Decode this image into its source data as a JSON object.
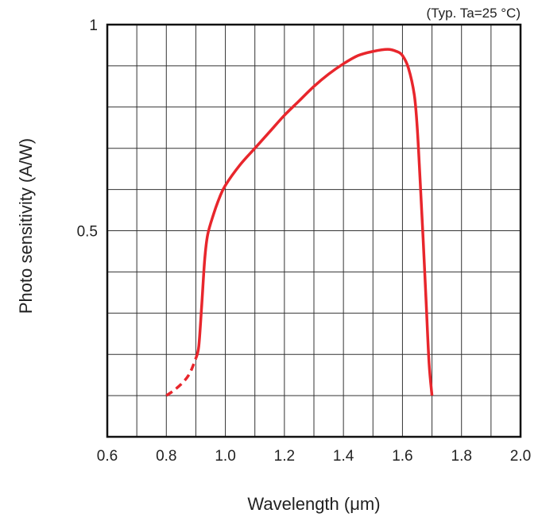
{
  "chart_data": {
    "type": "line",
    "title": "",
    "annotation": "(Typ. Ta=25 °C)",
    "xlabel": "Wavelength (μm)",
    "ylabel": "Photo sensitivity (A/W)",
    "xlim": [
      0.6,
      2.0
    ],
    "ylim": [
      0,
      1
    ],
    "x_ticks": [
      "0.6",
      "0.8",
      "1.0",
      "1.2",
      "1.4",
      "1.6",
      "1.8",
      "2.0"
    ],
    "x_tick_values": [
      0.6,
      0.8,
      1.0,
      1.2,
      1.4,
      1.6,
      1.8,
      2.0
    ],
    "y_ticks": [
      "0.5",
      "1"
    ],
    "y_tick_values": [
      0.5,
      1.0
    ],
    "grid": true,
    "x_grid_step": 0.1,
    "y_grid_step": 0.1,
    "line_color": "#e8262c",
    "series": [
      {
        "style": "dashed",
        "x": [
          0.8,
          0.83,
          0.86,
          0.88,
          0.9
        ],
        "y": [
          0.1,
          0.115,
          0.135,
          0.155,
          0.19
        ]
      },
      {
        "style": "solid",
        "x": [
          0.9,
          0.91,
          0.92,
          0.93,
          0.94,
          0.96,
          0.98,
          1.0,
          1.05,
          1.1,
          1.15,
          1.2,
          1.25,
          1.3,
          1.35,
          1.4,
          1.45,
          1.5,
          1.55,
          1.58,
          1.6,
          1.62,
          1.64,
          1.65,
          1.66,
          1.67,
          1.68,
          1.69,
          1.7
        ],
        "y": [
          0.19,
          0.22,
          0.32,
          0.43,
          0.49,
          0.54,
          0.58,
          0.61,
          0.66,
          0.7,
          0.74,
          0.78,
          0.815,
          0.85,
          0.88,
          0.905,
          0.925,
          0.935,
          0.94,
          0.935,
          0.925,
          0.895,
          0.83,
          0.75,
          0.62,
          0.48,
          0.33,
          0.18,
          0.1
        ]
      }
    ]
  }
}
